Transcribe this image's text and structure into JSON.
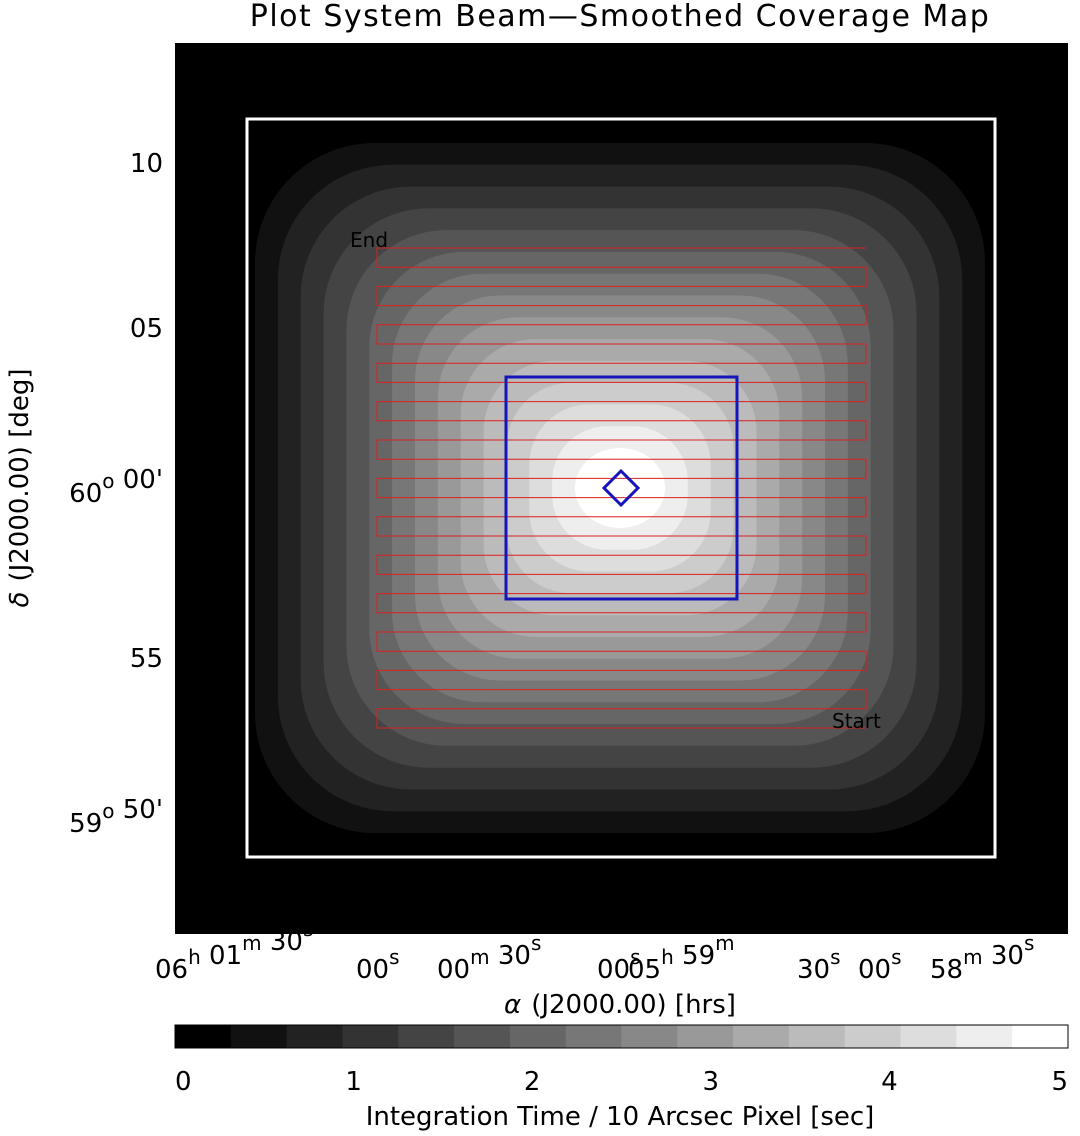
{
  "chart_data": {
    "type": "heatmap",
    "title": "Plot System Beam—Smoothed Coverage Map",
    "x_axis": {
      "label_symbol": "α",
      "label_text": "(J2000.00) [hrs]",
      "ticks": [
        {
          "parts": [
            [
              "06",
              "h"
            ],
            [
              " 01",
              "m"
            ],
            [
              " 30",
              "s"
            ]
          ]
        },
        {
          "parts": [
            [
              "00",
              "s"
            ]
          ]
        },
        {
          "parts": [
            [
              "00",
              "m"
            ],
            [
              " 30",
              "s"
            ]
          ]
        },
        {
          "parts": [
            [
              "00",
              "s"
            ]
          ]
        },
        {
          "parts": [
            [
              "05",
              "h"
            ],
            [
              " 59",
              "m"
            ]
          ]
        },
        {
          "parts": [
            [
              "30",
              "s"
            ]
          ]
        },
        {
          "parts": [
            [
              "00",
              "s"
            ]
          ]
        },
        {
          "parts": [
            [
              "58",
              "m"
            ],
            [
              " 30",
              "s"
            ]
          ]
        }
      ]
    },
    "y_axis": {
      "label_symbol": "δ",
      "label_text": "(J2000.00) [deg]",
      "ticks": [
        {
          "parts": [
            [
              "10",
              ""
            ]
          ]
        },
        {
          "parts": [
            [
              "05",
              ""
            ]
          ]
        },
        {
          "parts": [
            [
              "60",
              "o"
            ],
            [
              " 00'",
              ""
            ]
          ]
        },
        {
          "parts": [
            [
              "55",
              ""
            ]
          ]
        },
        {
          "parts": [
            [
              "59",
              "o"
            ],
            [
              " 50'",
              ""
            ]
          ]
        }
      ]
    },
    "colorbar": {
      "label": "Integration Time / 10 Arcsec Pixel [sec]",
      "range": [
        0,
        5
      ],
      "ticks": [
        "0",
        "1",
        "2",
        "3",
        "4",
        "5"
      ],
      "levels": 16
    },
    "annotations": {
      "scan_start": "Start",
      "scan_end": "End",
      "scan_legs": 26
    },
    "colors": {
      "field_box": "#ffffff",
      "scan_path": "#dd1f1f",
      "inner_box": "#1515b8",
      "background": "#000000"
    }
  }
}
